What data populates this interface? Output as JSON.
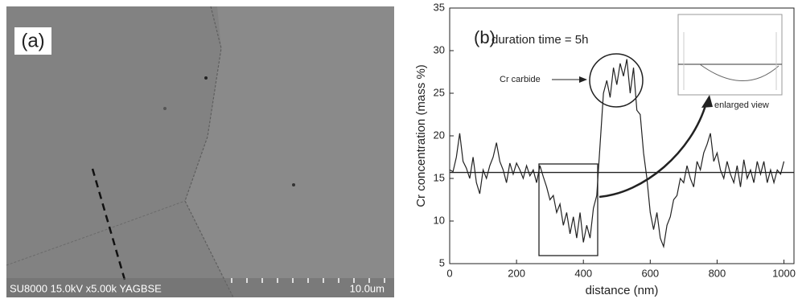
{
  "panel_a": {
    "label": "(a)",
    "info": "SU8000 15.0kV x5.00k YAGBSE",
    "scale": "10.0um"
  },
  "chart_data": {
    "type": "line",
    "panel_label": "(b)",
    "subtitle": "duration time = 5h",
    "x_label": "distance (nm)",
    "y_label": "Cr concentration (mass %)",
    "annotations": [
      "Cr carbide",
      "enlarged view"
    ],
    "x": [
      0,
      10,
      20,
      30,
      40,
      50,
      60,
      70,
      80,
      90,
      100,
      110,
      120,
      130,
      140,
      150,
      160,
      170,
      180,
      190,
      200,
      210,
      220,
      230,
      240,
      250,
      260,
      270,
      280,
      290,
      300,
      310,
      320,
      330,
      340,
      350,
      360,
      370,
      380,
      390,
      400,
      410,
      420,
      430,
      440,
      450,
      460,
      470,
      480,
      490,
      500,
      510,
      520,
      530,
      540,
      550,
      560,
      570,
      580,
      590,
      600,
      610,
      620,
      630,
      640,
      650,
      660,
      670,
      680,
      690,
      700,
      710,
      720,
      730,
      740,
      750,
      760,
      770,
      780,
      790,
      800,
      810,
      820,
      830,
      840,
      850,
      860,
      870,
      880,
      890,
      900,
      910,
      920,
      930,
      940,
      950,
      960,
      970,
      980,
      990,
      1000
    ],
    "series": [
      {
        "color": "#222222",
        "values": [
          16,
          15.8,
          17.5,
          20.3,
          17,
          16.2,
          15,
          17.5,
          14.5,
          13.2,
          16,
          15,
          16.5,
          17.5,
          19.2,
          17,
          16,
          14.5,
          16.8,
          15.5,
          16.8,
          16,
          15,
          16.5,
          15.3,
          16,
          14.5,
          16.5,
          15.2,
          14,
          12.5,
          13,
          11,
          12,
          9.5,
          11,
          8.5,
          10.5,
          8,
          11,
          7.5,
          9.5,
          8,
          11.5,
          13,
          19,
          25,
          26.5,
          24.5,
          28,
          26,
          28.5,
          27,
          29,
          25,
          28,
          23,
          22.5,
          18,
          15,
          11,
          9,
          11,
          8,
          7,
          9.5,
          10.5,
          12.5,
          13,
          15,
          14.5,
          16.5,
          15,
          14,
          17,
          16,
          18,
          19,
          20.3,
          17,
          18,
          16,
          15,
          17,
          15.5,
          14.5,
          16.5,
          14,
          17.2,
          15,
          16,
          14.5,
          17,
          15.5,
          17,
          14.5,
          16,
          14.5,
          16,
          15.5,
          17
        ]
      }
    ],
    "reference_line": 15.7,
    "xlim": [
      0,
      1030
    ],
    "ylim": [
      5,
      35
    ],
    "xticks": [
      0,
      200,
      400,
      600,
      800,
      1000
    ],
    "yticks": [
      5,
      10,
      15,
      20,
      25,
      30,
      35
    ]
  }
}
